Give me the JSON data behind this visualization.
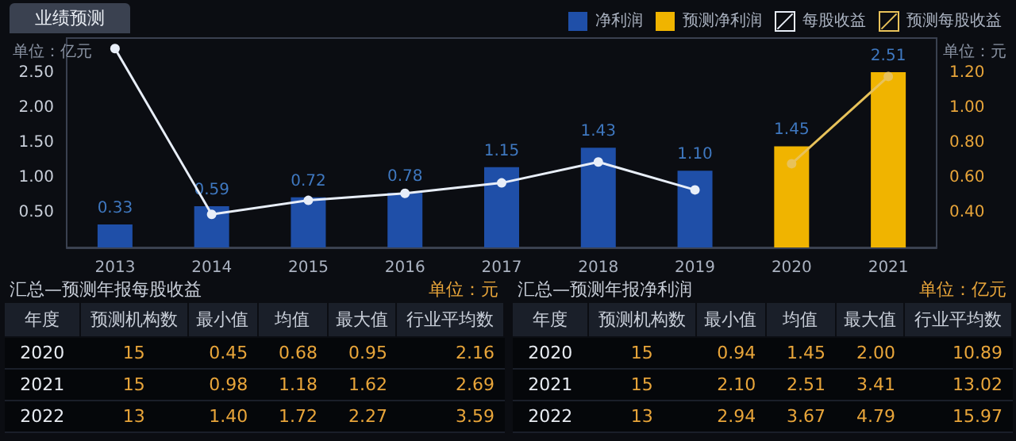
{
  "chart_data": [
    {
      "type": "bar",
      "title": "业绩预测",
      "categories": [
        "2013",
        "2014",
        "2015",
        "2016",
        "2017",
        "2018",
        "2019",
        "2020",
        "2021"
      ],
      "series": [
        {
          "name": "净利润",
          "type": "bar",
          "color": "#1f4fa8",
          "values": [
            0.33,
            0.59,
            0.72,
            0.78,
            1.15,
            1.43,
            1.1,
            null,
            null
          ],
          "value_labels": [
            "0.33",
            "0.59",
            "0.72",
            "0.78",
            "1.15",
            "1.43",
            "1.10",
            null,
            null
          ]
        },
        {
          "name": "预测净利润",
          "type": "bar",
          "color": "#f0b400",
          "values": [
            null,
            null,
            null,
            null,
            null,
            null,
            null,
            1.45,
            2.51
          ],
          "value_labels": [
            null,
            null,
            null,
            null,
            null,
            null,
            null,
            "1.45",
            "2.51"
          ]
        },
        {
          "name": "每股收益",
          "type": "line",
          "axis": "y2",
          "color": "#e8eef8",
          "values": [
            1.34,
            0.39,
            0.47,
            0.51,
            0.57,
            0.69,
            0.53,
            null,
            null
          ]
        },
        {
          "name": "预测每股收益",
          "type": "line",
          "axis": "y2",
          "color": "#e8c25a",
          "values": [
            null,
            null,
            null,
            null,
            null,
            null,
            null,
            0.68,
            1.18
          ]
        }
      ],
      "ylim": [
        0,
        3
      ],
      "yticks": [
        {
          "value": 0.5,
          "label": "0.50"
        },
        {
          "value": 1,
          "label": "1.00"
        },
        {
          "value": 1.5,
          "label": "1.50"
        },
        {
          "value": 2,
          "label": "2.00"
        },
        {
          "value": 2.5,
          "label": "2.50"
        }
      ],
      "y2lim": [
        0.2,
        1.4
      ],
      "y2ticks": [
        {
          "value": 0.4,
          "label": "0.40"
        },
        {
          "value": 0.6,
          "label": "0.60"
        },
        {
          "value": 0.8,
          "label": "0.80"
        },
        {
          "value": 1,
          "label": "1.00"
        },
        {
          "value": 1.2,
          "label": "1.20"
        }
      ],
      "annotations": [
        "单位：亿元",
        "单位：元"
      ],
      "legend": "top right",
      "marker": "circle"
    },
    {
      "type": "other",
      "title": "汇总—预测年报每股收益",
      "annotations": [
        "单位：元"
      ],
      "categories": [
        "年度",
        "预测机构数",
        "最小值",
        "均值",
        "最大值",
        "行业平均数"
      ],
      "cells": [
        [
          "2020",
          "15",
          "0.45",
          "0.68",
          "0.95",
          "2.16"
        ],
        [
          "2021",
          "15",
          "0.98",
          "1.18",
          "1.62",
          "2.69"
        ],
        [
          "2022",
          "13",
          "1.40",
          "1.72",
          "2.27",
          "3.59"
        ]
      ]
    },
    {
      "type": "other",
      "title": "汇总—预测年报净利润",
      "annotations": [
        "单位：亿元"
      ],
      "categories": [
        "年度",
        "预测机构数",
        "最小值",
        "均值",
        "最大值",
        "行业平均数"
      ],
      "cells": [
        [
          "2020",
          "15",
          "0.94",
          "1.45",
          "2.00",
          "10.89"
        ],
        [
          "2021",
          "15",
          "2.10",
          "2.51",
          "3.41",
          "13.02"
        ],
        [
          "2022",
          "13",
          "2.94",
          "3.67",
          "4.79",
          "15.97"
        ]
      ]
    }
  ]
}
